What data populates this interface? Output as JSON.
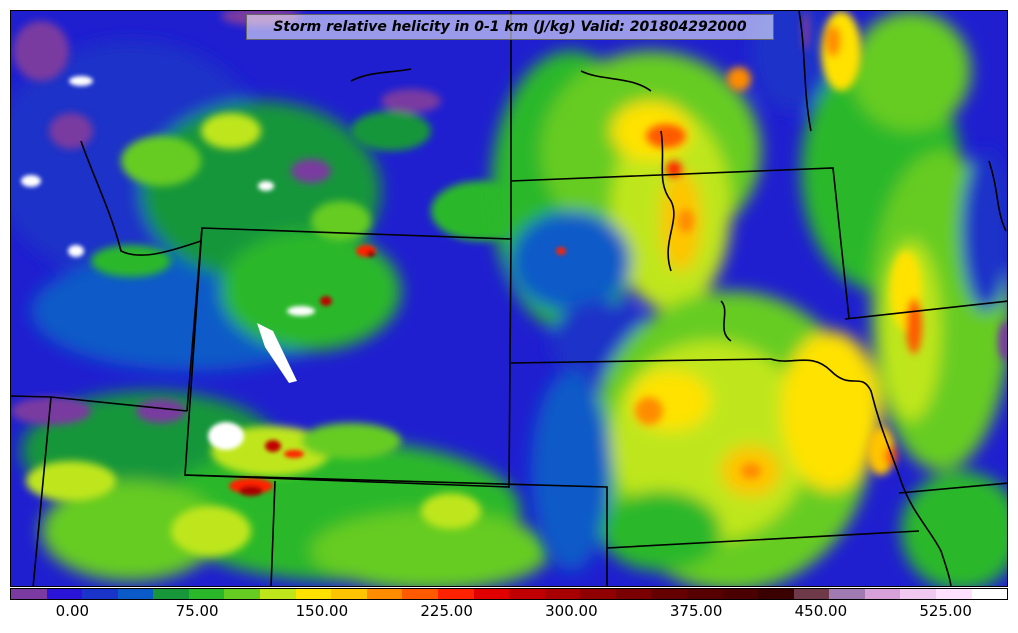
{
  "title": "Storm relative helicity in 0-1 km (J/kg) Valid: 201804292000",
  "colorbar": {
    "colors": [
      "#7a3aa0",
      "#2a14d8",
      "#1a33c8",
      "#0a5ac8",
      "#18963a",
      "#2ab82a",
      "#66cc22",
      "#bfe61a",
      "#ffe200",
      "#ffc400",
      "#ff8c00",
      "#ff5a00",
      "#ff2200",
      "#e00000",
      "#c00000",
      "#a80000",
      "#900000",
      "#7a0000",
      "#640000",
      "#560000",
      "#4a0000",
      "#3a0000",
      "#6e3a4a",
      "#a07ab0",
      "#d8a0d8",
      "#f0c8f0",
      "#ffe0ff",
      "#ffffff"
    ],
    "tick_labels": [
      "0.00",
      "75.00",
      "150.00",
      "225.00",
      "300.00",
      "375.00",
      "450.00",
      "525.00"
    ]
  },
  "legend": {
    "min_value": -37.5,
    "max_value": 562.5,
    "tick_values": [
      0,
      75,
      150,
      225,
      300,
      375,
      450,
      525
    ]
  }
}
